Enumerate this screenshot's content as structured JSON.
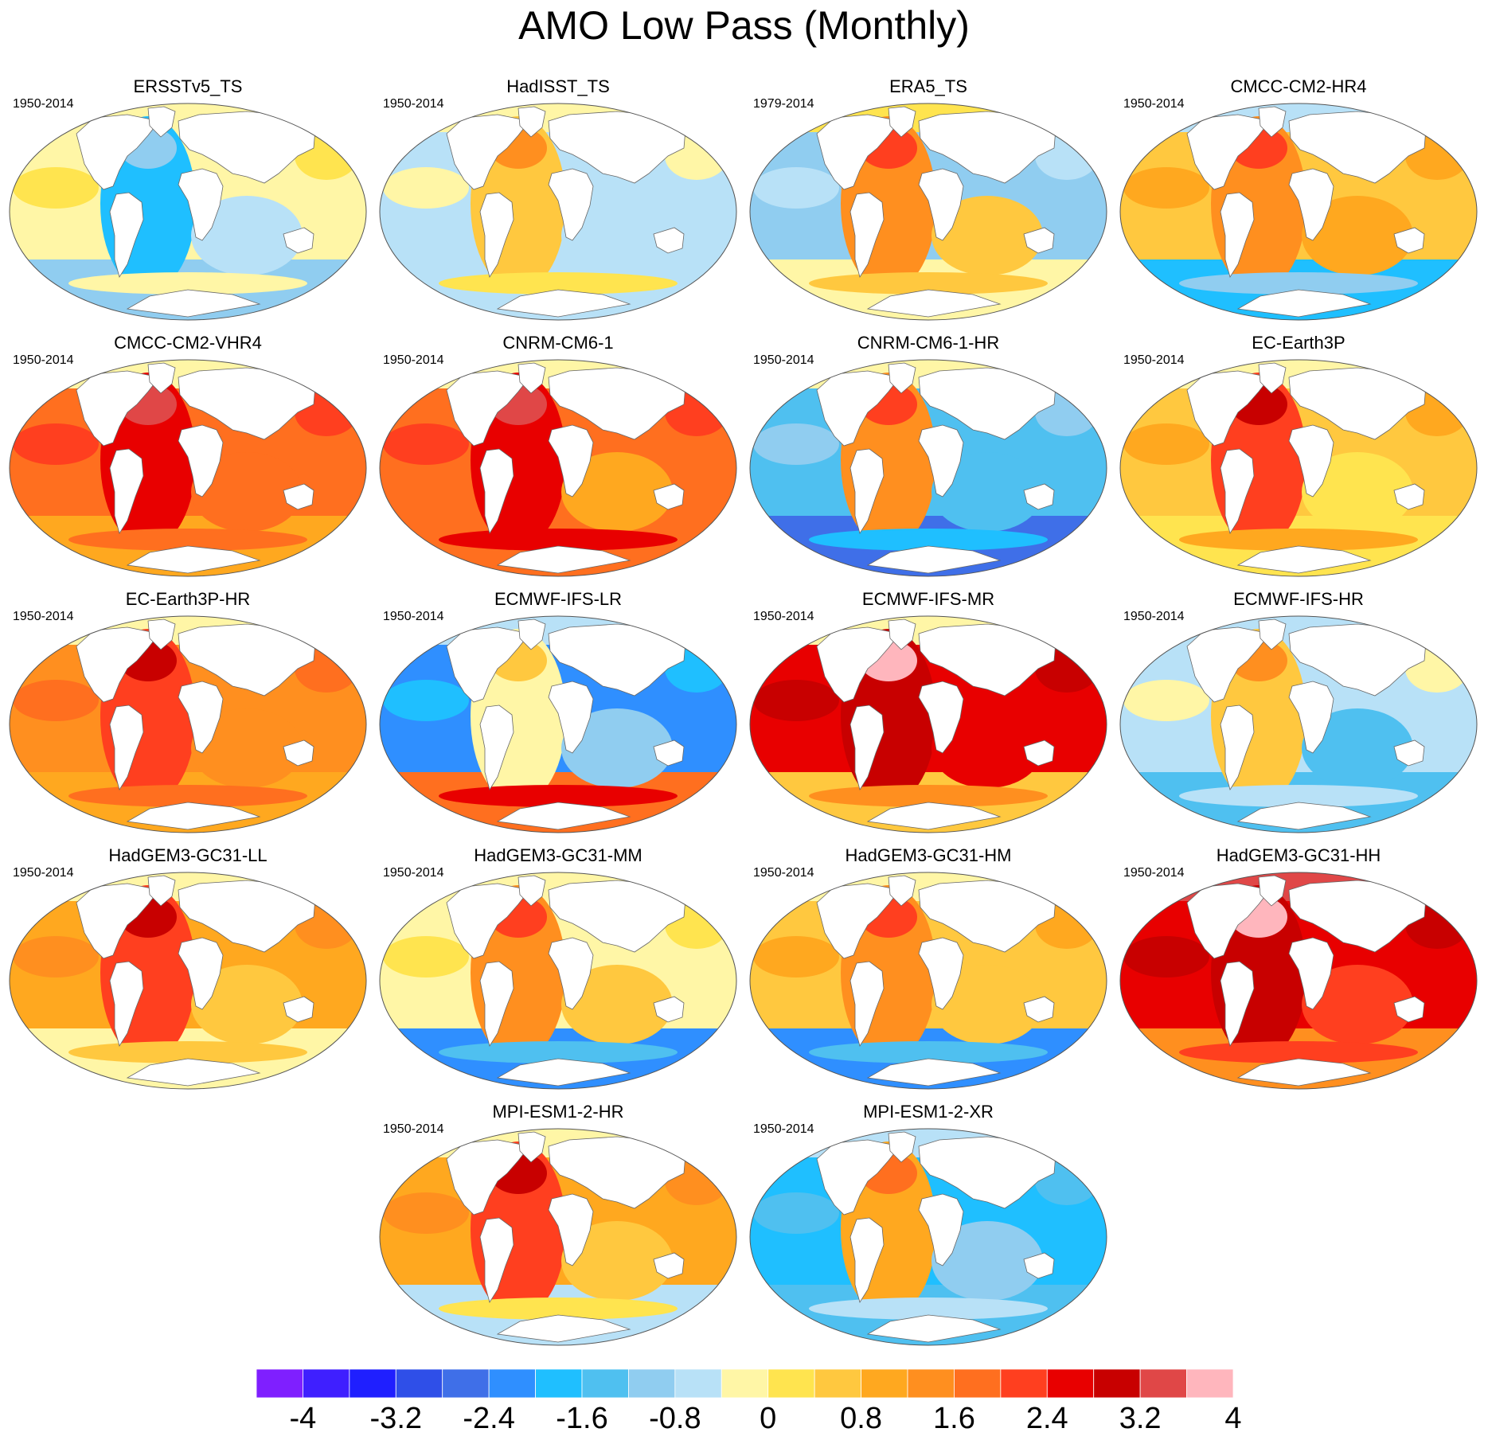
{
  "title": "AMO Low Pass (Monthly)",
  "colorbar": {
    "colors": [
      "#7f1fff",
      "#3f1fff",
      "#1f1fff",
      "#2f4fe8",
      "#3f6fe8",
      "#2f8fff",
      "#1fbfff",
      "#4fc0f0",
      "#90cdf0",
      "#b8e1f7",
      "#fff6a6",
      "#ffe44f",
      "#ffc83f",
      "#ffa81f",
      "#ff8f1f",
      "#ff6f1f",
      "#ff3f1f",
      "#e80000",
      "#c80000",
      "#e04747",
      "#ffb6bd"
    ],
    "labels": [
      "-4",
      "-3.2",
      "-2.4",
      "-1.6",
      "-0.8",
      "0",
      "0.8",
      "1.6",
      "2.4",
      "3.2",
      "4"
    ]
  },
  "panels": [
    {
      "name": "ERSSTv5_TS",
      "period": "1950-2014",
      "atlantic": 6,
      "pacific": 10,
      "indian": 9,
      "southern": 8,
      "arctic": 10
    },
    {
      "name": "HadISST_TS",
      "period": "1950-2014",
      "atlantic": 12,
      "pacific": 9,
      "indian": 9,
      "southern": 9,
      "arctic": 10
    },
    {
      "name": "ERA5_TS",
      "period": "1979-2014",
      "atlantic": 14,
      "pacific": 8,
      "indian": 12,
      "southern": 10,
      "arctic": 11
    },
    {
      "name": "CMCC-CM2-HR4",
      "period": "1950-2014",
      "atlantic": 14,
      "pacific": 12,
      "indian": 13,
      "southern": 6,
      "arctic": 9
    },
    {
      "name": "CMCC-CM2-VHR4",
      "period": "1950-2014",
      "atlantic": 17,
      "pacific": 15,
      "indian": 15,
      "southern": 13,
      "arctic": 10
    },
    {
      "name": "CNRM-CM6-1",
      "period": "1950-2014",
      "atlantic": 17,
      "pacific": 15,
      "indian": 13,
      "southern": 15,
      "arctic": 10
    },
    {
      "name": "CNRM-CM6-1-HR",
      "period": "1950-2014",
      "atlantic": 14,
      "pacific": 7,
      "indian": 7,
      "southern": 4,
      "arctic": 10
    },
    {
      "name": "EC-Earth3P",
      "period": "1950-2014",
      "atlantic": 16,
      "pacific": 12,
      "indian": 11,
      "southern": 11,
      "arctic": 10
    },
    {
      "name": "EC-Earth3P-HR",
      "period": "1950-2014",
      "atlantic": 16,
      "pacific": 14,
      "indian": 14,
      "southern": 13,
      "arctic": 10
    },
    {
      "name": "ECMWF-IFS-LR",
      "period": "1950-2014",
      "atlantic": 10,
      "pacific": 5,
      "indian": 8,
      "southern": 15,
      "arctic": 9
    },
    {
      "name": "ECMWF-IFS-MR",
      "period": "1950-2014",
      "atlantic": 18,
      "pacific": 17,
      "indian": 17,
      "southern": 12,
      "arctic": 10
    },
    {
      "name": "ECMWF-IFS-HR",
      "period": "1950-2014",
      "atlantic": 12,
      "pacific": 9,
      "indian": 7,
      "southern": 7,
      "arctic": 9
    },
    {
      "name": "HadGEM3-GC31-LL",
      "period": "1950-2014",
      "atlantic": 16,
      "pacific": 13,
      "indian": 12,
      "southern": 10,
      "arctic": 10
    },
    {
      "name": "HadGEM3-GC31-MM",
      "period": "1950-2014",
      "atlantic": 14,
      "pacific": 10,
      "indian": 12,
      "southern": 5,
      "arctic": 10
    },
    {
      "name": "HadGEM3-GC31-HM",
      "period": "1950-2014",
      "atlantic": 14,
      "pacific": 12,
      "indian": 12,
      "southern": 5,
      "arctic": 10
    },
    {
      "name": "HadGEM3-GC31-HH",
      "period": "1950-2014",
      "atlantic": 18,
      "pacific": 17,
      "indian": 16,
      "southern": 14,
      "arctic": 19
    },
    {
      "name": "MPI-ESM1-2-HR",
      "period": "1950-2014",
      "atlantic": 16,
      "pacific": 13,
      "indian": 12,
      "southern": 9,
      "arctic": 10
    },
    {
      "name": "MPI-ESM1-2-XR",
      "period": "1950-2014",
      "atlantic": 13,
      "pacific": 6,
      "indian": 8,
      "southern": 7,
      "arctic": 9
    }
  ]
}
